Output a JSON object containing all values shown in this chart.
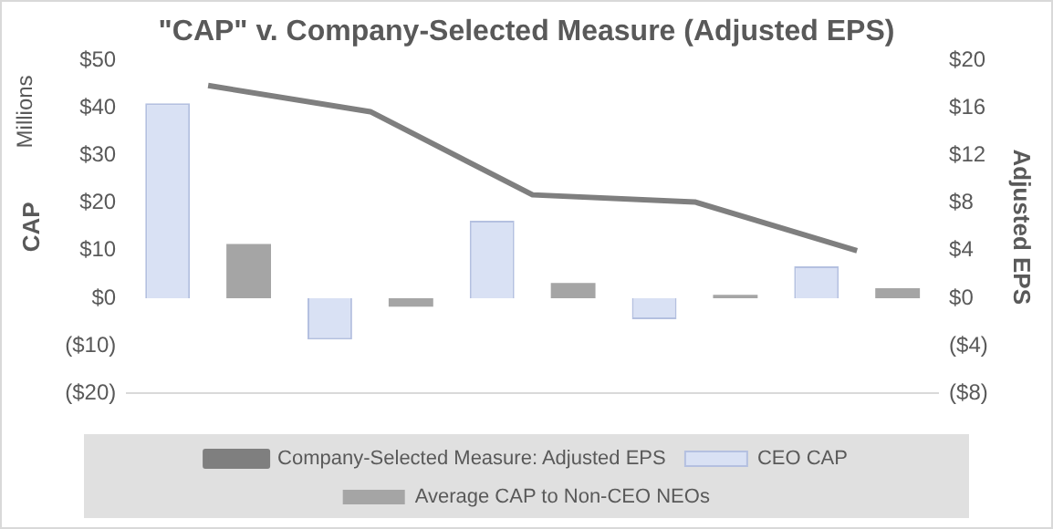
{
  "chart_data": {
    "type": "bar",
    "title": "\"CAP\" v. Company-Selected Measure (Adjusted EPS)",
    "ylabel": "CAP",
    "y2label": "Adjusted EPS",
    "annotations": [
      "Millions"
    ],
    "categories": [
      null,
      null,
      null,
      null,
      null
    ],
    "series": [
      {
        "name": "CEO CAP",
        "color": "#d9e1f4",
        "values": [
          41,
          -8.7,
          16.3,
          -4.4,
          6.7
        ]
      },
      {
        "name": "Average CAP to Non-CEO NEOs",
        "color": "#a5a5a5",
        "values": [
          11.4,
          -1.8,
          3.2,
          0.7,
          2.1
        ]
      },
      {
        "name": "Company-Selected Measure: Adjusted EPS",
        "type": "line",
        "axis": "y2",
        "color": "#7f7f7f",
        "values": [
          17.9,
          15.7,
          8.7,
          8.1,
          4.0
        ]
      }
    ],
    "ylim": [
      -20,
      50
    ],
    "yticks": [
      {
        "value": -20,
        "label": "($20)"
      },
      {
        "value": -10,
        "label": "($10)"
      },
      {
        "value": 0,
        "label": "$0"
      },
      {
        "value": 10,
        "label": "$10"
      },
      {
        "value": 20,
        "label": "$20"
      },
      {
        "value": 30,
        "label": "$30"
      },
      {
        "value": 40,
        "label": "$40"
      },
      {
        "value": 50,
        "label": "$50"
      }
    ],
    "y2lim": [
      -8,
      20
    ],
    "y2ticks": [
      {
        "value": -8,
        "label": "($8)"
      },
      {
        "value": -4,
        "label": "($4)"
      },
      {
        "value": 0,
        "label": "$0"
      },
      {
        "value": 4,
        "label": "$4"
      },
      {
        "value": 8,
        "label": "$8"
      },
      {
        "value": 12,
        "label": "$12"
      },
      {
        "value": 16,
        "label": "$16"
      },
      {
        "value": 20,
        "label": "$20"
      }
    ],
    "grid": false,
    "legend": "bottom",
    "marker": "none"
  }
}
